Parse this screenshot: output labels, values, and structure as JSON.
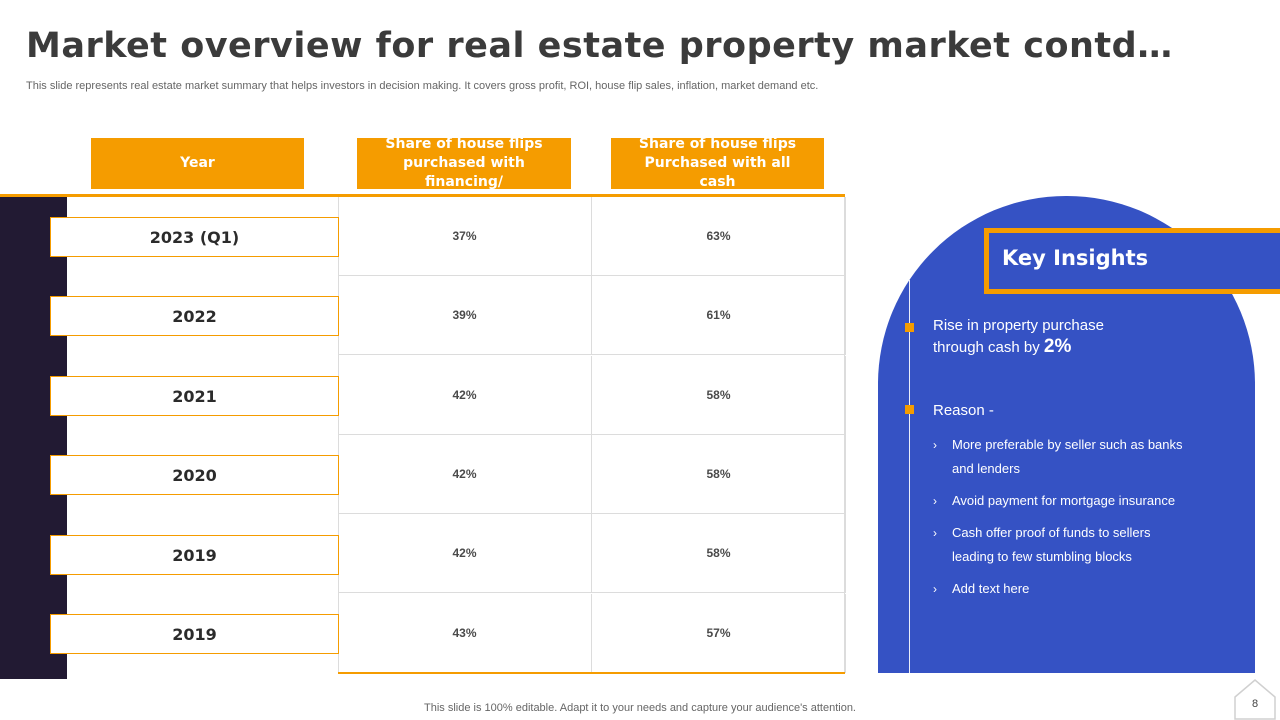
{
  "slide": {
    "title": "Market overview for real estate property market contd…",
    "subtitle": "This slide represents real estate market summary that helps investors in decision making. It covers gross profit, ROI, house flip sales, inflation, market demand etc."
  },
  "table": {
    "headers": {
      "year": "Year",
      "financing": "Share of house flips purchased with financing/",
      "cash": "Share of house flips Purchased with all cash"
    },
    "rows": [
      {
        "year": "2023 (Q1)",
        "financing": "37%",
        "cash": "63%"
      },
      {
        "year": "2022",
        "financing": "39%",
        "cash": "61%"
      },
      {
        "year": "2021",
        "financing": "42%",
        "cash": "58%"
      },
      {
        "year": "2020",
        "financing": "42%",
        "cash": "58%"
      },
      {
        "year": "2019",
        "financing": "42%",
        "cash": "58%"
      },
      {
        "year": "2019",
        "financing": "43%",
        "cash": "57%"
      }
    ]
  },
  "insights": {
    "title": "Key Insights",
    "point1_line1": "Rise in property purchase",
    "point1_line2": "through cash by",
    "point1_value": "2%",
    "reason_label": "Reason -",
    "reasons": [
      "More preferable  by seller such as banks and lenders",
      "Avoid payment for mortgage insurance",
      "Cash offer proof of funds to sellers leading to few stumbling blocks",
      "Add text here"
    ]
  },
  "footer": {
    "note": "This slide is 100% editable. Adapt it to your needs and capture your audience's attention.",
    "page_number": "8"
  },
  "colors": {
    "accent": "#f59c00",
    "panel": "#3552c4",
    "dark_strip": "#221a33"
  },
  "icons": {
    "bullet": "orange-square",
    "chevron": "chevron-right-icon",
    "page": "home-outline-icon"
  }
}
